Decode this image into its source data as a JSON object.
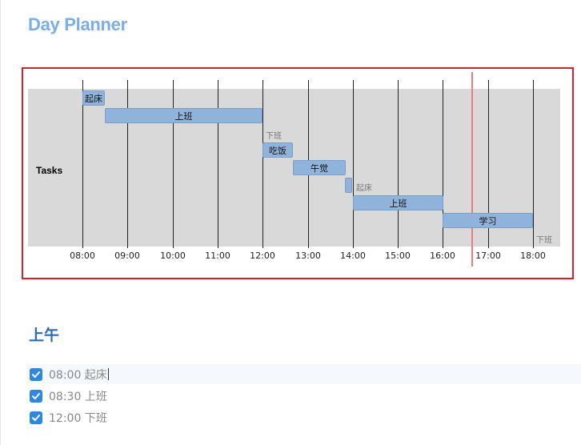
{
  "title": "Day Planner",
  "gantt": {
    "row_label": "Tasks",
    "ticks": [
      "08:00",
      "09:00",
      "10:00",
      "11:00",
      "12:00",
      "13:00",
      "14:00",
      "15:00",
      "16:00",
      "17:00",
      "18:00"
    ],
    "current_time": "16:38",
    "tasks": [
      {
        "label": "起床",
        "start": "08:00",
        "end": "08:30"
      },
      {
        "label": "上班",
        "start": "08:30",
        "end": "12:00"
      },
      {
        "label": "下班",
        "start": "12:00",
        "end": "12:00",
        "milestone": true
      },
      {
        "label": "吃饭",
        "start": "12:00",
        "end": "12:40"
      },
      {
        "label": "午觉",
        "start": "12:40",
        "end": "13:50"
      },
      {
        "label": "起床",
        "start": "13:50",
        "end": "14:00"
      },
      {
        "label": "上班",
        "start": "14:00",
        "end": "16:00"
      },
      {
        "label": "学习",
        "start": "16:00",
        "end": "18:00"
      },
      {
        "label": "下班",
        "start": "18:00",
        "end": "18:00",
        "milestone": true
      }
    ],
    "colors": {
      "bar": "#8fb3da",
      "frame": "#d8202d",
      "now_line": "#e87d7d",
      "background": "#d9d9d9"
    }
  },
  "section": {
    "heading": "上午",
    "items": [
      {
        "text": "08:00 起床",
        "checked": true
      },
      {
        "text": "08:30 上班",
        "checked": true
      },
      {
        "text": "12:00 下班",
        "checked": true
      }
    ]
  }
}
